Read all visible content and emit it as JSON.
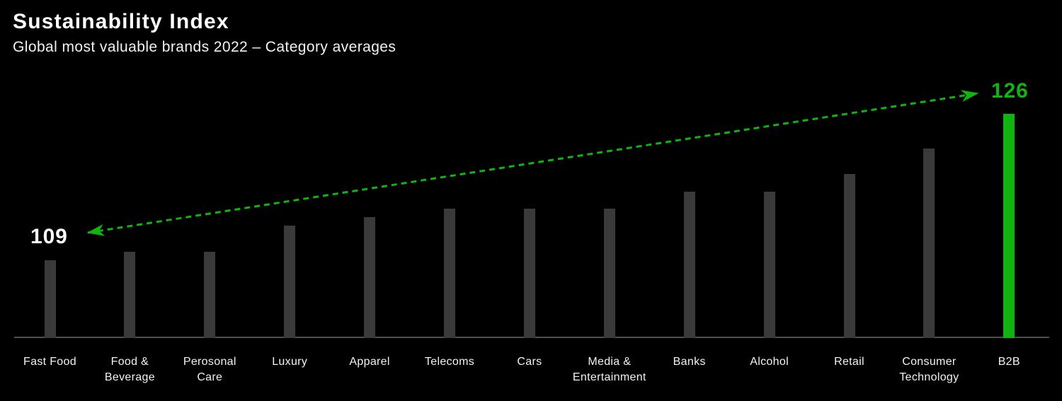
{
  "header": {
    "title": "Sustainability Index",
    "subtitle": "Global most valuable brands 2022 – Category averages"
  },
  "chart_data": {
    "type": "bar",
    "title": "Sustainability Index",
    "subtitle": "Global most valuable brands 2022 – Category averages",
    "categories": [
      "Fast Food",
      "Food &\nBeverage",
      "Perosonal\nCare",
      "Luxury",
      "Apparel",
      "Telecoms",
      "Cars",
      "Media &\nEntertainment",
      "Banks",
      "Alcohol",
      "Retail",
      "Consumer\nTechnology",
      "B2B"
    ],
    "values": [
      109,
      110,
      110,
      113,
      114,
      115,
      115,
      115,
      117,
      117,
      119,
      122,
      126
    ],
    "baseline_value": 100,
    "xlabel": "",
    "ylabel": "",
    "grid": false,
    "y_axis_visible": false,
    "legend": false,
    "highlight_index": 12,
    "highlight_category": "B2B",
    "annotations": {
      "start_label": "109",
      "end_label": "126",
      "trend_arrow": "double-headed dashed arrow from lowest (109) to highest (126) category"
    },
    "colors": {
      "background": "#000000",
      "bar": "#3a3a3a",
      "highlight": "#10b410",
      "arrow": "#10b410",
      "axis_line": "#4f4f4f",
      "category_text": "#f2f2f2",
      "start_label_color": "#ffffff",
      "end_label_color": "#10b410"
    }
  }
}
